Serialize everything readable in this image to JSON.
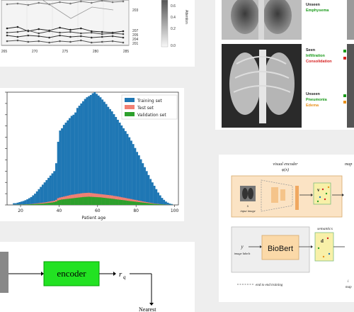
{
  "line_panel": {
    "series_labels": [
      "203",
      "207",
      "205",
      "204",
      "201"
    ],
    "x_ticks": [
      "265",
      "270",
      "275",
      "280",
      "285"
    ],
    "colorbar_ticks": [
      "0.6",
      "0.4",
      "0.2",
      "0.0"
    ],
    "colorbar_title": "Attention"
  },
  "xray_panel": {
    "labels": [
      {
        "status": "Unseen",
        "finding": "Emphysema"
      },
      {
        "status": "Seen",
        "finding": "Infiltration",
        "finding2": "Consolidation"
      },
      {
        "status": "Unseen",
        "finding": "Pneumonia",
        "finding2": "Edema"
      }
    ],
    "colors": {
      "status": "#222222",
      "green": "#1a9a1a",
      "red": "#d62020",
      "orange": "#e8901a"
    }
  },
  "chart_data": {
    "type": "bar",
    "title": "",
    "xlabel": "Patient age",
    "ylabel": "",
    "x_ticks": [
      20,
      40,
      60,
      80,
      100
    ],
    "xlim": [
      13,
      102
    ],
    "ylim": [
      0,
      1000
    ],
    "legend_position": "top-right",
    "bin_start": 16,
    "bin_width": 1,
    "series": [
      {
        "name": "Training set",
        "color": "#1f77b4",
        "values": [
          15,
          15,
          20,
          25,
          30,
          35,
          42,
          50,
          60,
          70,
          85,
          100,
          120,
          140,
          160,
          180,
          200,
          220,
          240,
          260,
          280,
          300,
          370,
          560,
          660,
          680,
          710,
          730,
          750,
          770,
          790,
          800,
          820,
          860,
          880,
          900,
          920,
          940,
          955,
          965,
          975,
          990,
          1000,
          985,
          970,
          955,
          935,
          915,
          895,
          870,
          850,
          830,
          805,
          780,
          755,
          730,
          705,
          680,
          655,
          630,
          600,
          570,
          540,
          505,
          470,
          440,
          405,
          370,
          335,
          300,
          265,
          230,
          200,
          170,
          140,
          110,
          85,
          62,
          45,
          30,
          20,
          12,
          8
        ]
      },
      {
        "name": "Test set",
        "color": "#f28073",
        "values": [
          2,
          2,
          3,
          3,
          4,
          4,
          5,
          6,
          7,
          8,
          10,
          12,
          14,
          16,
          18,
          20,
          22,
          25,
          28,
          31,
          34,
          37,
          45,
          60,
          66,
          70,
          74,
          78,
          82,
          86,
          90,
          92,
          95,
          98,
          100,
          103,
          105,
          106,
          107,
          108,
          106,
          104,
          102,
          100,
          98,
          96,
          94,
          92,
          90,
          88,
          86,
          84,
          80,
          78,
          75,
          72,
          68,
          65,
          62,
          58,
          55,
          52,
          48,
          45,
          42,
          38,
          35,
          31,
          28,
          25,
          22,
          19,
          16,
          13,
          11,
          9,
          7,
          5,
          4,
          3,
          2,
          1,
          1
        ]
      },
      {
        "name": "Validation set",
        "color": "#2ca02c",
        "values": [
          1,
          1,
          2,
          2,
          2,
          3,
          3,
          4,
          5,
          6,
          7,
          8,
          9,
          10,
          11,
          12,
          14,
          16,
          18,
          20,
          22,
          25,
          30,
          40,
          45,
          48,
          50,
          52,
          54,
          56,
          58,
          60,
          62,
          64,
          66,
          68,
          70,
          71,
          72,
          73,
          72,
          71,
          70,
          69,
          68,
          67,
          65,
          63,
          61,
          59,
          57,
          55,
          53,
          50,
          48,
          46,
          44,
          42,
          40,
          37,
          35,
          33,
          31,
          29,
          27,
          25,
          23,
          21,
          19,
          17,
          15,
          13,
          11,
          9,
          8,
          6,
          5,
          4,
          3,
          2,
          1,
          1,
          1
        ]
      }
    ]
  },
  "encoder_panel": {
    "encoder_label": "encoder",
    "output_label": "r",
    "output_subscript": "q",
    "cut_label": "Nearest"
  },
  "framework_panel": {
    "visual_encoder_title": "visual encoder",
    "visual_encoder_fn": "φ(x)",
    "input_var": "x",
    "input_caption": "input image",
    "feature_var": "v",
    "label_var": "y",
    "label_caption": "image labels",
    "biobert_label": "BioBert",
    "semantics_title": "semantics",
    "semantic_var": "d",
    "footer_note": "end to end training",
    "cut_top": "map",
    "cut_bottom_1": "i",
    "cut_bottom_2": "map"
  }
}
